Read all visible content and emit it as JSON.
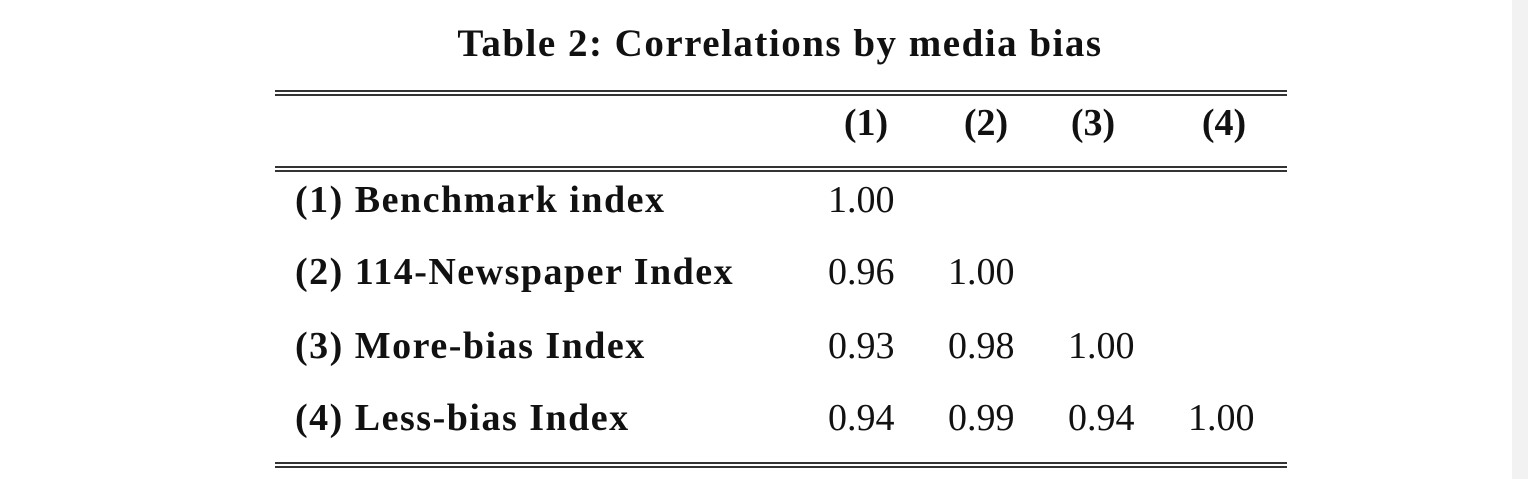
{
  "title": "Table 2: Correlations by media bias",
  "table": {
    "header": [
      "(1)",
      "(2)",
      "(3)",
      "(4)"
    ],
    "rows": [
      {
        "label": "(1) Benchmark index",
        "values": [
          "1.00"
        ]
      },
      {
        "label": "(2) 114-Newspaper Index",
        "values": [
          "0.96",
          "1.00"
        ]
      },
      {
        "label": "(3) More-bias Index",
        "values": [
          "0.93",
          "0.98",
          "1.00"
        ]
      },
      {
        "label": "(4) Less-bias Index",
        "values": [
          "0.94",
          "0.99",
          "0.94",
          "1.00"
        ]
      }
    ]
  }
}
